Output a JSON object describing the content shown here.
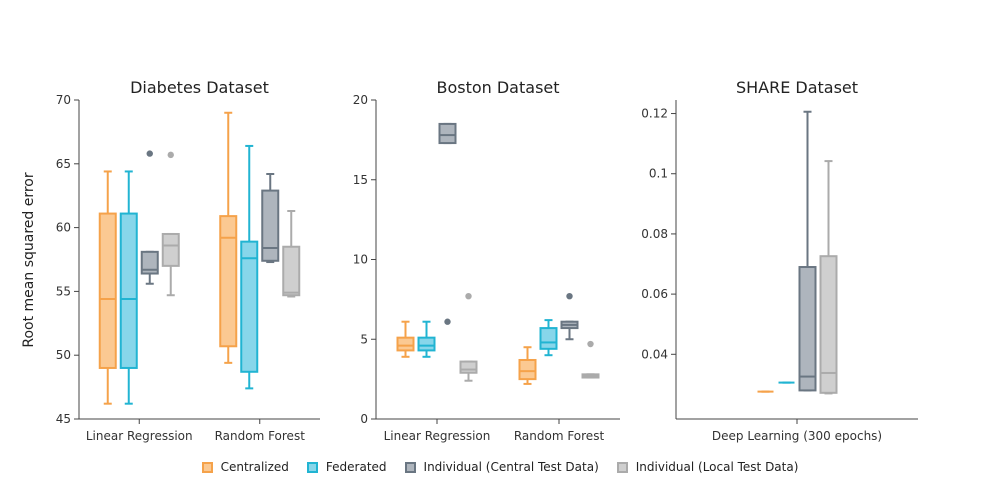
{
  "chart_data": {
    "type": "box",
    "ylabel": "Root mean squared error",
    "legend_position": "bottom-center",
    "series": [
      {
        "name": "Centralized",
        "fill": "#fbc992",
        "stroke": "#f5a24a"
      },
      {
        "name": "Federated",
        "fill": "#87d6ea",
        "stroke": "#21b4d2"
      },
      {
        "name": "Individual (Central Test Data)",
        "fill": "#aeb5bd",
        "stroke": "#6a7682"
      },
      {
        "name": "Individual (Local Test Data)",
        "fill": "#cfcfcf",
        "stroke": "#ababab"
      }
    ],
    "panels": [
      {
        "title": "Diabetes Dataset",
        "ylim": [
          45,
          70
        ],
        "yticks": [
          45,
          50,
          55,
          60,
          65,
          70
        ],
        "ytick_labels": [
          "45",
          "50",
          "55",
          "60",
          "65",
          "70"
        ],
        "categories": [
          "Linear Regression",
          "Random Forest"
        ],
        "boxes": [
          [
            {
              "lower": 46.2,
              "q1": 49.0,
              "median": 54.4,
              "q3": 61.1,
              "upper": 64.4,
              "outliers": []
            },
            {
              "lower": 46.2,
              "q1": 49.0,
              "median": 54.4,
              "q3": 61.1,
              "upper": 64.4,
              "outliers": []
            },
            {
              "lower": 55.6,
              "q1": 56.4,
              "median": 56.7,
              "q3": 58.1,
              "upper": 58.1,
              "outliers": [
                65.8
              ]
            },
            {
              "lower": 54.7,
              "q1": 57.0,
              "median": 58.6,
              "q3": 59.5,
              "upper": 59.5,
              "outliers": [
                65.7
              ]
            }
          ],
          [
            {
              "lower": 49.4,
              "q1": 50.7,
              "median": 59.2,
              "q3": 60.9,
              "upper": 69.0,
              "outliers": []
            },
            {
              "lower": 47.4,
              "q1": 48.7,
              "median": 57.6,
              "q3": 58.9,
              "upper": 66.4,
              "outliers": []
            },
            {
              "lower": 57.3,
              "q1": 57.4,
              "median": 58.4,
              "q3": 62.9,
              "upper": 64.2,
              "outliers": []
            },
            {
              "lower": 54.6,
              "q1": 54.7,
              "median": 54.9,
              "q3": 58.5,
              "upper": 61.3,
              "outliers": []
            }
          ]
        ]
      },
      {
        "title": "Boston Dataset",
        "ylim": [
          0,
          20
        ],
        "yticks": [
          0,
          5,
          10,
          15,
          20
        ],
        "ytick_labels": [
          "0",
          "5",
          "10",
          "15",
          "20"
        ],
        "categories": [
          "Linear Regression",
          "Random Forest"
        ],
        "boxes": [
          [
            {
              "lower": 3.9,
              "q1": 4.3,
              "median": 4.6,
              "q3": 5.1,
              "upper": 6.1,
              "outliers": []
            },
            {
              "lower": 3.9,
              "q1": 4.3,
              "median": 4.6,
              "q3": 5.1,
              "upper": 6.1,
              "outliers": []
            },
            {
              "lower": 17.3,
              "q1": 17.3,
              "median": 17.8,
              "q3": 18.5,
              "upper": 18.5,
              "outliers": [
                6.1
              ]
            },
            {
              "lower": 2.4,
              "q1": 2.9,
              "median": 3.1,
              "q3": 3.6,
              "upper": 3.6,
              "outliers": [
                7.7
              ]
            }
          ],
          [
            {
              "lower": 2.2,
              "q1": 2.5,
              "median": 3.0,
              "q3": 3.7,
              "upper": 4.5,
              "outliers": []
            },
            {
              "lower": 4.0,
              "q1": 4.4,
              "median": 4.8,
              "q3": 5.7,
              "upper": 6.2,
              "outliers": []
            },
            {
              "lower": 5.0,
              "q1": 5.7,
              "median": 5.9,
              "q3": 6.1,
              "upper": 6.1,
              "outliers": [
                7.7
              ]
            },
            {
              "lower": 2.6,
              "q1": 2.6,
              "median": 2.7,
              "q3": 2.8,
              "upper": 2.8,
              "outliers": [
                4.7
              ]
            }
          ]
        ]
      },
      {
        "title": "SHARE Dataset",
        "ylim": [
          0.0185,
          0.1245
        ],
        "yticks": [
          0.04,
          0.06,
          0.08,
          0.1,
          0.12
        ],
        "ytick_labels": [
          "0.04",
          "0.06",
          "0.08",
          "0.1",
          "0.12"
        ],
        "categories": [
          "Deep Learning (300 epochs)"
        ],
        "boxes": [
          [
            {
              "lower": 0.0276,
              "q1": 0.0276,
              "median": 0.0276,
              "q3": 0.0276,
              "upper": 0.0276,
              "outliers": []
            },
            {
              "lower": 0.0306,
              "q1": 0.0306,
              "median": 0.0306,
              "q3": 0.0306,
              "upper": 0.0306,
              "outliers": []
            },
            {
              "lower": 0.028,
              "q1": 0.028,
              "median": 0.0326,
              "q3": 0.069,
              "upper": 0.1206,
              "outliers": []
            },
            {
              "lower": 0.027,
              "q1": 0.0272,
              "median": 0.0338,
              "q3": 0.0726,
              "upper": 0.1042,
              "outliers": []
            }
          ]
        ]
      }
    ]
  }
}
